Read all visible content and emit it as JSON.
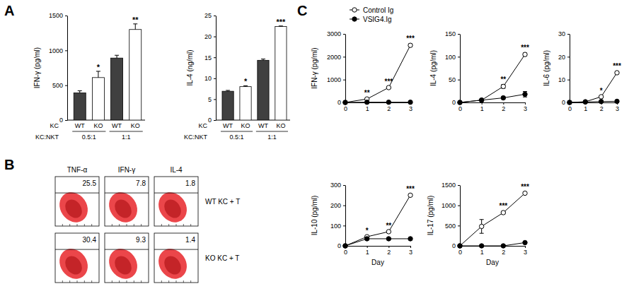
{
  "panel_labels": [
    "A",
    "B",
    "C"
  ],
  "chart_data": [
    {
      "type": "bar",
      "y_label": "IFN-γ (pg/ml)",
      "categories": [
        "WT",
        "KO",
        "WT",
        "KO"
      ],
      "category_title": "KC",
      "groups": [
        "0.5:1",
        "1:1"
      ],
      "group_title": "KC:NKT",
      "values": [
        390,
        610,
        890,
        1300
      ],
      "errors": [
        30,
        90,
        40,
        80
      ],
      "significance": [
        null,
        "*",
        null,
        "**"
      ],
      "colors": [
        "#404040",
        "#ffffff",
        "#404040",
        "#ffffff"
      ],
      "ylim": [
        0,
        1500
      ],
      "yticks": [
        0,
        500,
        1000,
        1500
      ]
    },
    {
      "type": "bar",
      "y_label": "IL-4 (ng/ml)",
      "categories": [
        "WT",
        "KO",
        "WT",
        "KO"
      ],
      "category_title": "KC",
      "groups": [
        "0.5:1",
        "1:1"
      ],
      "group_title": "KC:NKT",
      "values": [
        6.9,
        8.0,
        14.3,
        22.4
      ],
      "errors": [
        0.2,
        0.2,
        0.3,
        0.1
      ],
      "significance": [
        null,
        "*",
        null,
        "***"
      ],
      "colors": [
        "#404040",
        "#ffffff",
        "#404040",
        "#ffffff"
      ],
      "ylim": [
        0,
        25
      ],
      "yticks": [
        0,
        5,
        10,
        15,
        20,
        25
      ]
    },
    {
      "type": "line",
      "y_label": "IFN-γ (pg/ml)",
      "legend": "top-left",
      "x": [
        0,
        1,
        2,
        3
      ],
      "xlim": [
        0,
        3
      ],
      "xticks": [
        0,
        1,
        2,
        3
      ],
      "ylim": [
        0,
        3000
      ],
      "yticks": [
        0,
        1000,
        2000,
        3000
      ],
      "significance": [
        null,
        "**",
        "***",
        "***"
      ],
      "series": [
        {
          "name": "Control Ig",
          "color": "#000000",
          "marker": "open-circle",
          "values": [
            0,
            150,
            650,
            2500
          ],
          "errors": [
            0,
            30,
            40,
            60
          ]
        },
        {
          "name": "VSIG4.Ig",
          "color": "#000000",
          "marker": "filled-circle",
          "values": [
            0,
            10,
            10,
            10
          ],
          "errors": [
            0,
            5,
            5,
            5
          ]
        }
      ]
    },
    {
      "type": "line",
      "y_label": "IL-4 (pg/ml)",
      "x": [
        0,
        1,
        2,
        3
      ],
      "xlim": [
        0,
        3
      ],
      "xticks": [
        0,
        1,
        2,
        3
      ],
      "ylim": [
        0,
        150
      ],
      "yticks": [
        0,
        50,
        100,
        150
      ],
      "significance": [
        null,
        null,
        "**",
        "***"
      ],
      "series": [
        {
          "color": "#000000",
          "marker": "open-circle",
          "values": [
            0,
            5,
            35,
            105
          ],
          "errors": [
            0,
            2,
            4,
            3
          ]
        },
        {
          "color": "#000000",
          "marker": "filled-circle",
          "values": [
            0,
            5,
            10,
            18
          ],
          "errors": [
            0,
            1,
            2,
            6
          ]
        }
      ]
    },
    {
      "type": "line",
      "y_label": "IL-6 (pg/ml)",
      "x": [
        0,
        1,
        2,
        3
      ],
      "xlim": [
        0,
        3
      ],
      "xticks": [
        0,
        1,
        2,
        3
      ],
      "ylim": [
        0,
        30
      ],
      "yticks": [
        0,
        10,
        20,
        30
      ],
      "significance": [
        null,
        null,
        "*",
        "***"
      ],
      "series": [
        {
          "color": "#000000",
          "marker": "open-circle",
          "values": [
            0,
            0.3,
            2.5,
            13
          ],
          "errors": [
            0,
            0.1,
            0.4,
            0.5
          ]
        },
        {
          "color": "#000000",
          "marker": "filled-circle",
          "values": [
            0,
            0.2,
            0.4,
            0.5
          ],
          "errors": [
            0,
            0.1,
            0.1,
            0.1
          ]
        }
      ]
    },
    {
      "type": "line",
      "y_label": "IL-10 (pg/ml)",
      "x_label": "Day",
      "x": [
        0,
        1,
        2,
        3
      ],
      "xlim": [
        0,
        3
      ],
      "xticks": [
        0,
        1,
        2,
        3
      ],
      "ylim": [
        0,
        300
      ],
      "yticks": [
        0,
        100,
        200,
        300
      ],
      "significance": [
        null,
        "*",
        "**",
        "***"
      ],
      "series": [
        {
          "color": "#000000",
          "marker": "open-circle",
          "values": [
            0,
            45,
            70,
            250
          ],
          "errors": [
            0,
            3,
            4,
            5
          ]
        },
        {
          "color": "#000000",
          "marker": "filled-circle",
          "values": [
            0,
            35,
            35,
            35
          ],
          "errors": [
            0,
            3,
            3,
            3
          ]
        }
      ]
    },
    {
      "type": "line",
      "y_label": "IL-17 (pg/ml)",
      "x_label": "Day",
      "x": [
        0,
        1,
        2,
        3
      ],
      "xlim": [
        0,
        3
      ],
      "xticks": [
        0,
        1,
        2,
        3
      ],
      "ylim": [
        0,
        1500
      ],
      "yticks": [
        0,
        500,
        1000,
        1500
      ],
      "significance": [
        null,
        null,
        "***",
        "***"
      ],
      "series": [
        {
          "color": "#000000",
          "marker": "open-circle",
          "values": [
            0,
            480,
            820,
            1300
          ],
          "errors": [
            0,
            170,
            30,
            30
          ]
        },
        {
          "color": "#000000",
          "marker": "filled-circle",
          "values": [
            0,
            0,
            0,
            80
          ],
          "errors": [
            0,
            0,
            0,
            10
          ]
        }
      ]
    }
  ],
  "flow_cytometry": {
    "columns": [
      "TNF-α",
      "IFN-γ",
      "IL-4"
    ],
    "rows": [
      {
        "label": "WT KC + T",
        "percents": [
          25.5,
          7.8,
          1.8
        ]
      },
      {
        "label": "KO KC + T",
        "percents": [
          30.4,
          9.3,
          1.4
        ]
      }
    ]
  }
}
